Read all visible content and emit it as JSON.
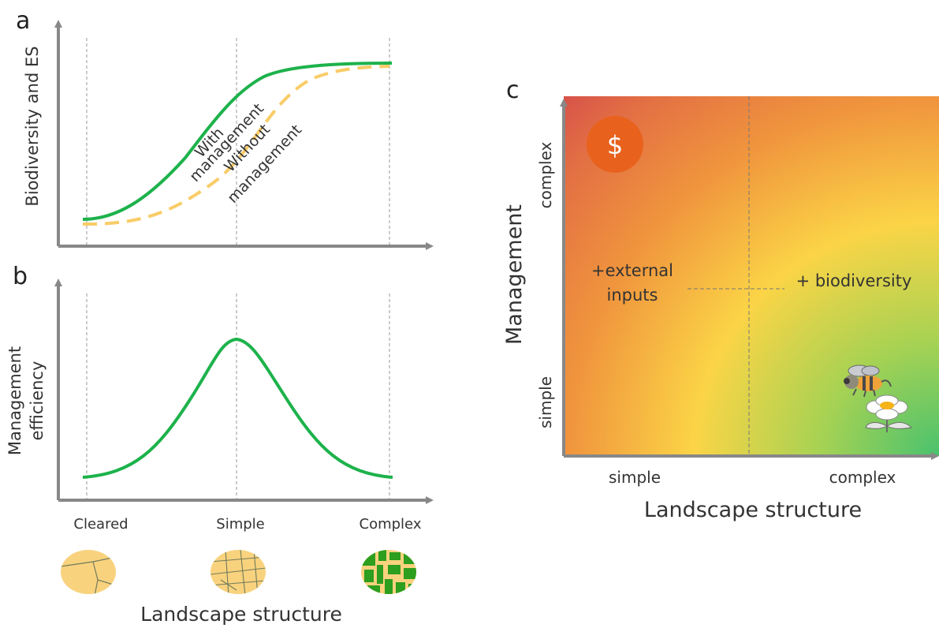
{
  "panel_a": {
    "letter": "a",
    "y_axis_label": "Biodiversity and ES",
    "with_label_1": "With",
    "with_label_2": "management",
    "without_label_1": "Without",
    "without_label_2": "management",
    "colors": {
      "with": "#1db24b",
      "without": "#f9cc67"
    }
  },
  "panel_b": {
    "letter": "b",
    "y_axis_label_1": "Management",
    "y_axis_label_2": "efficiency",
    "x_categories": [
      "Cleared",
      "Simple",
      "Complex"
    ],
    "x_axis_label": "Landscape structure",
    "icons": [
      "cleared-landscape-icon",
      "simple-landscape-icon",
      "complex-landscape-icon"
    ]
  },
  "panel_c": {
    "letter": "c",
    "y_axis_label": "Management",
    "y_ticks": [
      "complex",
      "simple"
    ],
    "x_ticks": [
      "simple",
      "complex"
    ],
    "x_axis_label": "Landscape structure",
    "left_label_1": "+external",
    "left_label_2": "inputs",
    "right_label": "+ biodiversity",
    "dollar_symbol": "$",
    "icons": [
      "dollar-icon",
      "bee-icon",
      "flower-icon"
    ],
    "colors": {
      "red": "#d9534a",
      "orange": "#ef8a3c",
      "yellow": "#fbd447",
      "green": "#4bbf6a"
    }
  }
}
